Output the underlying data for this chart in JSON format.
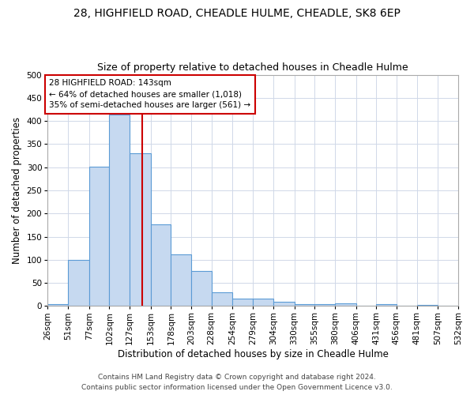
{
  "title1": "28, HIGHFIELD ROAD, CHEADLE HULME, CHEADLE, SK8 6EP",
  "title2": "Size of property relative to detached houses in Cheadle Hulme",
  "xlabel": "Distribution of detached houses by size in Cheadle Hulme",
  "ylabel": "Number of detached properties",
  "bin_edges": [
    26,
    51,
    77,
    102,
    127,
    153,
    178,
    203,
    228,
    254,
    279,
    304,
    330,
    355,
    380,
    406,
    431,
    456,
    481,
    507,
    532
  ],
  "bar_heights": [
    4,
    99,
    301,
    414,
    330,
    176,
    111,
    75,
    30,
    16,
    16,
    10,
    4,
    4,
    6,
    1,
    4,
    1,
    3,
    1
  ],
  "bar_color": "#c6d9f0",
  "bar_edge_color": "#5b9bd5",
  "vline_x": 143,
  "vline_color": "#cc0000",
  "annotation_line1": "28 HIGHFIELD ROAD: 143sqm",
  "annotation_line2": "← 64% of detached houses are smaller (1,018)",
  "annotation_line3": "35% of semi-detached houses are larger (561) →",
  "annotation_box_color": "#ffffff",
  "annotation_box_edge": "#cc0000",
  "footer1": "Contains HM Land Registry data © Crown copyright and database right 2024.",
  "footer2": "Contains public sector information licensed under the Open Government Licence v3.0.",
  "ylim": [
    0,
    500
  ],
  "yticks": [
    0,
    50,
    100,
    150,
    200,
    250,
    300,
    350,
    400,
    450,
    500
  ],
  "bg_color": "#ffffff",
  "grid_color": "#d0d8e8",
  "title1_fontsize": 10,
  "title2_fontsize": 9,
  "xlabel_fontsize": 8.5,
  "ylabel_fontsize": 8.5,
  "tick_fontsize": 7.5,
  "annot_fontsize": 7.5,
  "footer_fontsize": 6.5
}
